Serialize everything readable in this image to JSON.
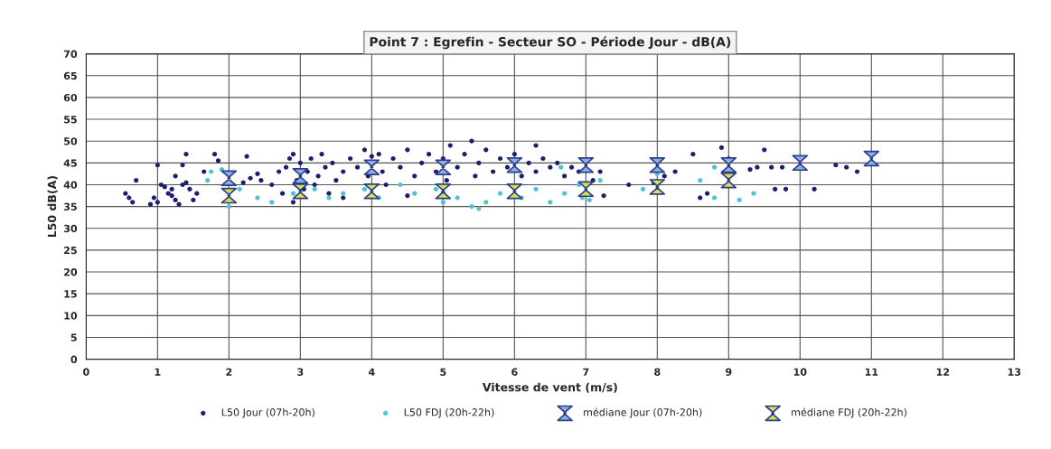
{
  "chart_data": {
    "type": "scatter",
    "title": "Point 7 : Egrefin - Secteur SO - Période Jour - dB(A)",
    "xlabel": "Vitesse de vent (m/s)",
    "ylabel": "L50 dB(A)",
    "xlim": [
      0,
      13
    ],
    "xticks": [
      0,
      1,
      2,
      3,
      4,
      5,
      6,
      7,
      8,
      9,
      10,
      11,
      12,
      13
    ],
    "ylim": [
      0,
      70
    ],
    "yticks": [
      0,
      5,
      10,
      15,
      20,
      25,
      30,
      35,
      40,
      45,
      50,
      55,
      60,
      65,
      70
    ],
    "grid": true,
    "legend": "bottom",
    "series": [
      {
        "name": "L50 Jour (07h-20h)",
        "color": "#1b1f6e",
        "marker": "circle",
        "x": [
          0.55,
          0.6,
          0.65,
          0.7,
          0.9,
          0.95,
          1.0,
          1.0,
          1.05,
          1.1,
          1.15,
          1.2,
          1.2,
          1.25,
          1.25,
          1.3,
          1.35,
          1.35,
          1.4,
          1.4,
          1.45,
          1.5,
          1.55,
          1.65,
          1.8,
          1.85,
          2.25,
          2.2,
          2.3,
          2.4,
          2.45,
          2.6,
          2.7,
          2.75,
          2.8,
          2.85,
          2.9,
          2.95,
          3.0,
          3.05,
          3.1,
          3.15,
          3.2,
          3.25,
          3.3,
          3.35,
          3.4,
          3.45,
          3.5,
          3.6,
          3.7,
          3.8,
          3.9,
          3.95,
          4.0,
          4.1,
          4.15,
          4.2,
          4.3,
          4.4,
          4.5,
          4.6,
          4.7,
          4.8,
          4.9,
          5.0,
          5.05,
          5.1,
          5.2,
          5.3,
          5.4,
          5.45,
          5.5,
          5.6,
          5.7,
          5.8,
          5.9,
          6.0,
          6.1,
          6.2,
          6.3,
          6.4,
          6.5,
          6.6,
          6.7,
          6.8,
          6.9,
          7.1,
          7.2,
          6.3,
          7.25,
          7.6,
          7.95,
          8.1,
          8.25,
          8.5,
          8.6,
          8.7,
          8.9,
          9.3,
          9.4,
          9.5,
          9.0,
          9.6,
          9.65,
          9.75,
          9.8,
          10.2,
          10.5,
          10.65,
          10.8,
          3.6,
          4.5,
          5.0,
          2.9
        ],
        "values": [
          38,
          37,
          36,
          41,
          35.5,
          37,
          44.5,
          36,
          40,
          39.5,
          38,
          39,
          37.5,
          42,
          36.5,
          35.5,
          40,
          44.5,
          47,
          40.5,
          39,
          36.5,
          38,
          43,
          47,
          45.5,
          46.5,
          40.5,
          41.5,
          42.5,
          41,
          40,
          43,
          38,
          44,
          46,
          47,
          41,
          45,
          39,
          43,
          46,
          40,
          42,
          47,
          44,
          38,
          45,
          41,
          43,
          46,
          44,
          48,
          42,
          46.5,
          47,
          43,
          40,
          46,
          44,
          48,
          42,
          45,
          47,
          43,
          46,
          41,
          49,
          44,
          47,
          50,
          42,
          45,
          48,
          43,
          46,
          44,
          47,
          42,
          45,
          43,
          46,
          44,
          45,
          42,
          44,
          43,
          41,
          43,
          49,
          37.5,
          40,
          40.5,
          42,
          43,
          47,
          37,
          38,
          48.5,
          43.5,
          44,
          48,
          46,
          44,
          39,
          44,
          39,
          39,
          44.5,
          44,
          43,
          37,
          37.5,
          38,
          36
        ]
      },
      {
        "name": "L50 FDJ (20h-22h)",
        "color": "#4fc3d0",
        "marker": "circle",
        "x": [
          1.7,
          1.75,
          2.0,
          2.15,
          2.4,
          2.6,
          2.9,
          3.2,
          3.4,
          3.6,
          3.9,
          4.1,
          4.4,
          4.6,
          4.9,
          5.0,
          5.2,
          5.4,
          5.5,
          5.6,
          5.8,
          6.1,
          6.3,
          6.5,
          6.7,
          6.9,
          6.95,
          7.05,
          7.2,
          7.8,
          8.6,
          8.8,
          8.8,
          9.15,
          9.35,
          8.0,
          6.65,
          1.9
        ],
        "values": [
          41,
          43,
          35,
          39,
          37,
          36,
          38,
          39,
          37,
          38,
          39,
          37,
          40,
          38,
          39,
          36,
          37,
          35,
          34.5,
          36,
          38,
          37,
          39,
          36,
          38,
          40,
          37,
          36.5,
          41,
          39,
          41,
          44,
          37,
          36.5,
          38,
          42.5,
          44,
          43.5
        ]
      },
      {
        "name": "médiane Jour (07h-20h)",
        "color": "#8fb0e0",
        "x": [
          2,
          3,
          4,
          5,
          6,
          7,
          8,
          9,
          10,
          11
        ],
        "values": [
          41.5,
          42,
          44,
          44,
          44.5,
          44.5,
          44.5,
          44.5,
          45,
          46
        ]
      },
      {
        "name": "médiane FDJ (20h-22h)",
        "color": "#d8e04a",
        "x": [
          2,
          3,
          4,
          5,
          6,
          7,
          8,
          9
        ],
        "values": [
          37.5,
          38.5,
          38.5,
          38.5,
          38.5,
          39,
          39.5,
          41
        ]
      }
    ]
  }
}
